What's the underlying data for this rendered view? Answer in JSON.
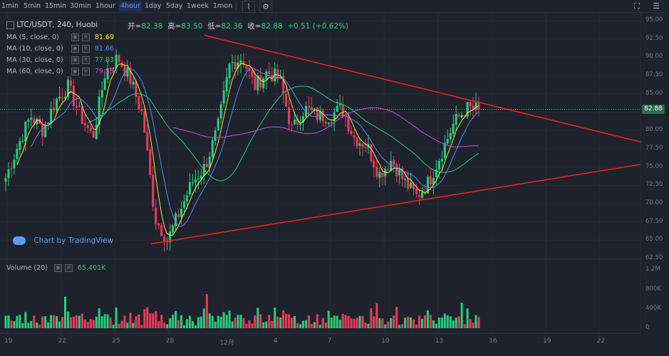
{
  "toolbar": {
    "timeframes": [
      "1min",
      "5min",
      "15min",
      "30min",
      "1hour",
      "4hour",
      "1day",
      "5day",
      "1week",
      "1mon"
    ],
    "active_timeframe": "4hour",
    "chart_type_icon": "area-chart-icon",
    "settings_icon": "gear-icon",
    "fullscreen_icon": "fullscreen-icon",
    "layout_icon": "layout-icon"
  },
  "legend": {
    "symbol": "LTC/USDT, 240, Huobi",
    "open_label": "开=",
    "open": "82.38",
    "high_label": "高=",
    "high": "83.50",
    "low_label": "低=",
    "low": "82.36",
    "close_label": "收=",
    "close": "82.88",
    "change": "+0.51 (+0.62%)",
    "indicators": [
      {
        "label": "MA (5, close, 0)",
        "value": "81.69",
        "color": "#f9e24d"
      },
      {
        "label": "MA (10, close, 0)",
        "value": "81.66",
        "color": "#4f8ff7"
      },
      {
        "label": "MA (30, close, 0)",
        "value": "77.83",
        "color": "#26d07c"
      },
      {
        "label": "MA (60, close, 0)",
        "value": "79.55",
        "color": "#d14fd6"
      }
    ],
    "volume_label": "Volume (20)",
    "volume_value": "65.401K"
  },
  "watermark": "Chart by TradingView",
  "current_price": "82.88",
  "colors": {
    "up": "#26d07c",
    "down": "#ef3b59",
    "trend": "#e8231c",
    "ma5": "#f9e24d",
    "ma10": "#4f8ff7",
    "ma30": "#26d07c",
    "ma60": "#d14fd6"
  },
  "chart_data": {
    "type": "candlestick",
    "price_ticks": [
      "95.00",
      "92.50",
      "90.00",
      "87.50",
      "85.00",
      "82.50",
      "80.00",
      "77.50",
      "75.00",
      "72.50",
      "70.00",
      "67.50",
      "65.00",
      "62.50"
    ],
    "volume_ticks": [
      "1.2M",
      "800K",
      "400K",
      "0"
    ],
    "x_ticks": [
      "19",
      "22",
      "25",
      "28",
      "12月",
      "4",
      "7",
      "10",
      "13",
      "16",
      "19",
      "22"
    ],
    "close_path": [
      73.5,
      78,
      82,
      80,
      84,
      86,
      82,
      79,
      88,
      90,
      87,
      82,
      68,
      65,
      69,
      73,
      75,
      80,
      89,
      90,
      86,
      88,
      87,
      80,
      83,
      82,
      82,
      83,
      79,
      78,
      74,
      76,
      73,
      71,
      73,
      77,
      81,
      83,
      82.88
    ],
    "triangle_upper": {
      "start": [
        4.3,
        93.0
      ],
      "end": [
        25.2,
        77.8
      ]
    },
    "triangle_lower": {
      "start": [
        27.5,
        64.5
      ],
      "end": [
        25.2,
        75.8
      ]
    },
    "note_units": "x in tick-date index, y in price"
  }
}
